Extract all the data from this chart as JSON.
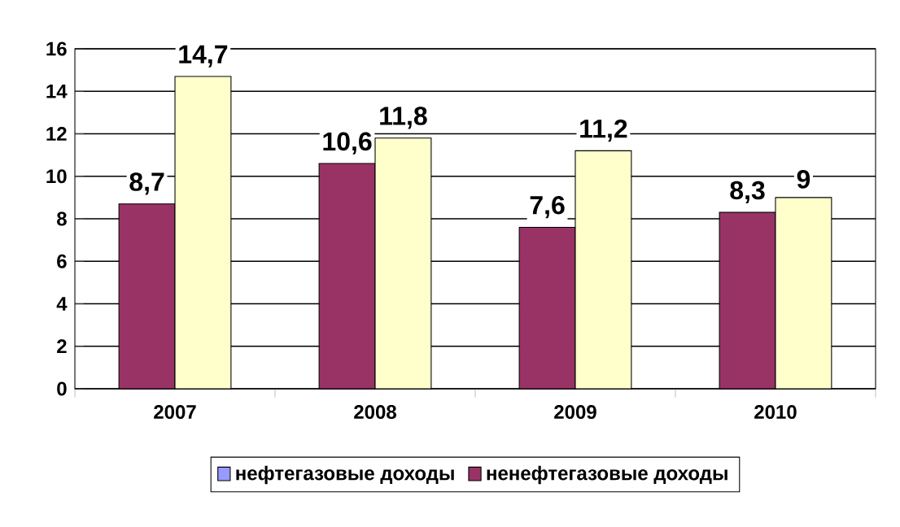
{
  "chart_data": {
    "type": "bar",
    "categories": [
      "2007",
      "2008",
      "2009",
      "2010"
    ],
    "series": [
      {
        "name": "нефтегазовые доходы",
        "color": "#9999ff",
        "values": [
          null,
          null,
          null,
          null
        ]
      },
      {
        "name": "ненефтегазовые доходы",
        "color": "#993366",
        "values": [
          8.7,
          10.6,
          7.6,
          8.3
        ],
        "value_labels": [
          "8,7",
          "10,6",
          "7,6",
          "8,3"
        ]
      },
      {
        "color": "#ffffcc",
        "values": [
          14.7,
          11.8,
          11.2,
          9
        ],
        "value_labels": [
          "14,7",
          "11,8",
          "11,2",
          "9"
        ]
      }
    ],
    "ylim": [
      0,
      16
    ],
    "yticks": [
      0,
      2,
      4,
      6,
      8,
      10,
      12,
      14,
      16
    ],
    "grid": "y",
    "legend": "bottom"
  }
}
